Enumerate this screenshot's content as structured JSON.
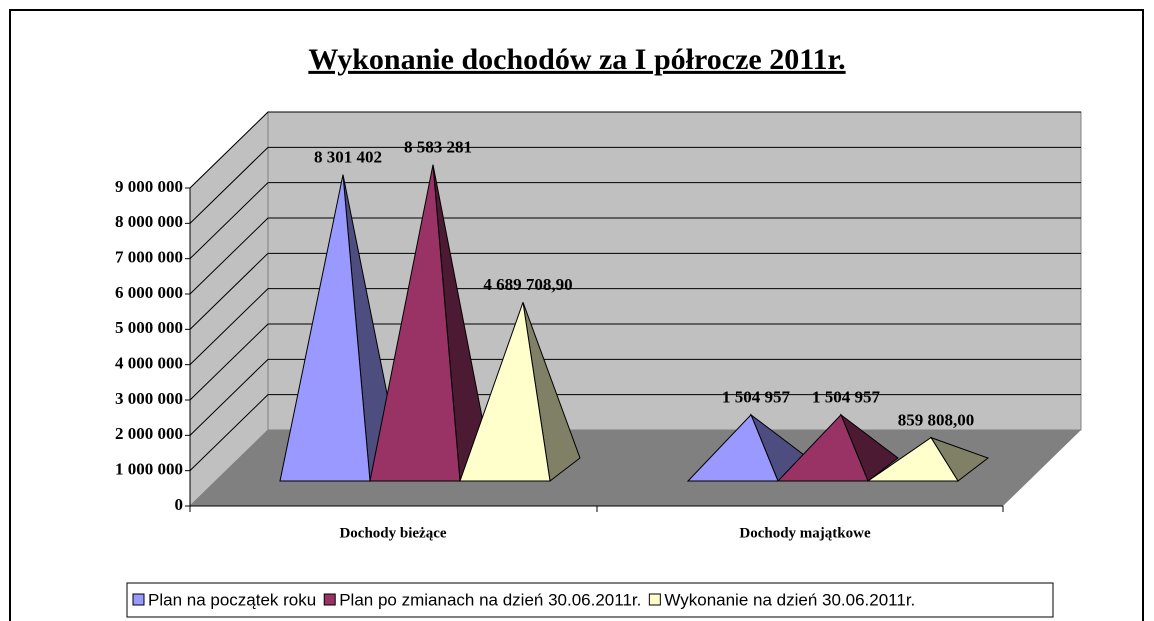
{
  "chart_data": {
    "type": "pyramid3d",
    "title": "Wykonanie dochodów za I półrocze 2011r.",
    "categories": [
      "Dochody bieżące",
      "Dochody majątkowe"
    ],
    "series": [
      {
        "name": "Plan na początek roku",
        "color": "#9999ff",
        "side_color": "#4d4d80",
        "values": [
          8301402,
          1504957
        ],
        "value_labels": [
          "8 301 402",
          "1 504 957"
        ]
      },
      {
        "name": "Plan po zmianach na dzień 30.06.2011r.",
        "color": "#993366",
        "side_color": "#4d1a33",
        "values": [
          8583281,
          1504957
        ],
        "value_labels": [
          "8 583 281",
          "1 504 957"
        ]
      },
      {
        "name": "Wykonanie na dzień 30.06.2011r.",
        "color": "#ffffcc",
        "side_color": "#808066",
        "values": [
          4689708.9,
          859808.0
        ],
        "value_labels": [
          "4 689 708,90",
          "859 808,00"
        ]
      }
    ],
    "ylim": [
      0,
      9000000
    ],
    "yticks": [
      0,
      {
        "value": 1000000,
        "label": "1 000 000"
      },
      {
        "value": 2000000,
        "label": "2 000 000"
      },
      {
        "value": 3000000,
        "label": "3 000 000"
      },
      {
        "value": 4000000,
        "label": "4 000 000"
      },
      {
        "value": 5000000,
        "label": "5 000 000"
      },
      {
        "value": 6000000,
        "label": "6 000 000"
      },
      {
        "value": 7000000,
        "label": "7 000 000"
      },
      {
        "value": 8000000,
        "label": "8 000 000"
      },
      {
        "value": 9000000,
        "label": "9 000 000"
      }
    ],
    "grid": true,
    "legend": "bottom"
  }
}
